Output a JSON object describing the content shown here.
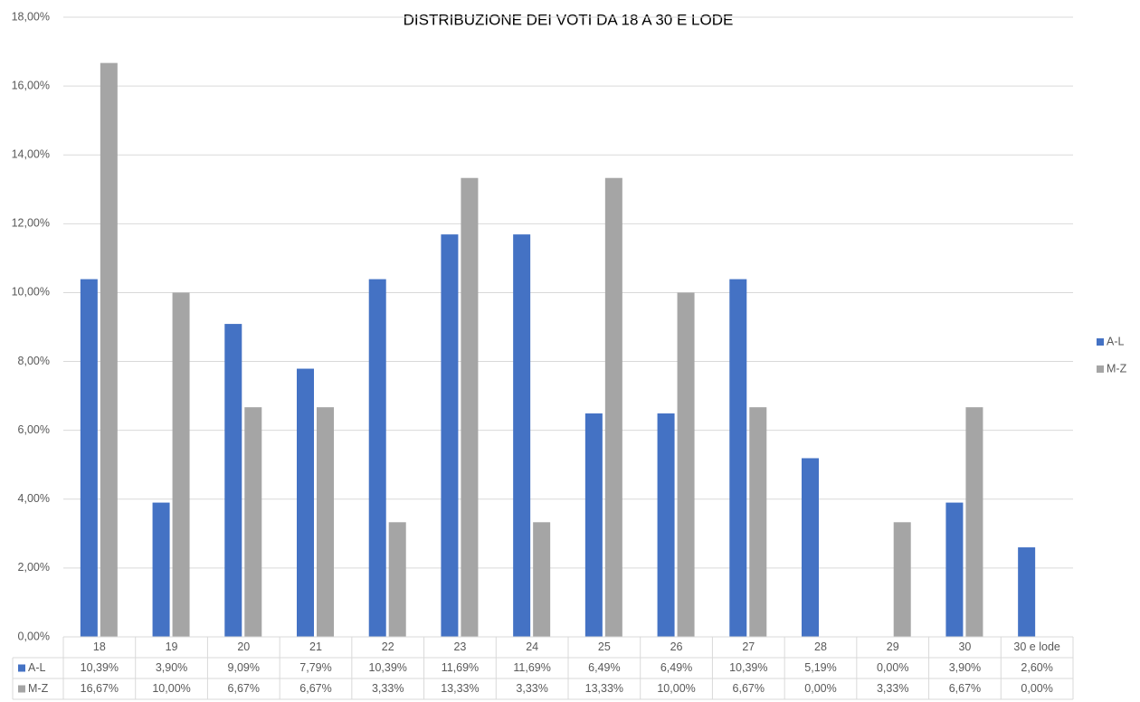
{
  "chart_data": {
    "type": "bar",
    "title": "DISTRIBUZIONE DEI VOTI DA 18 A 30 E LODE",
    "categories": [
      "18",
      "19",
      "20",
      "21",
      "22",
      "23",
      "24",
      "25",
      "26",
      "27",
      "28",
      "29",
      "30",
      "30 e lode"
    ],
    "series": [
      {
        "name": "A-L",
        "color": "#4472c4",
        "values": [
          10.39,
          3.9,
          9.09,
          7.79,
          10.39,
          11.69,
          11.69,
          6.49,
          6.49,
          10.39,
          5.19,
          0.0,
          3.9,
          2.6
        ],
        "value_labels": [
          "10,39%",
          "3,90%",
          "9,09%",
          "7,79%",
          "10,39%",
          "11,69%",
          "11,69%",
          "6,49%",
          "6,49%",
          "10,39%",
          "5,19%",
          "0,00%",
          "3,90%",
          "2,60%"
        ]
      },
      {
        "name": "M-Z",
        "color": "#a5a5a5",
        "values": [
          16.67,
          10.0,
          6.67,
          6.67,
          3.33,
          13.33,
          3.33,
          13.33,
          10.0,
          6.67,
          0.0,
          3.33,
          6.67,
          0.0
        ],
        "value_labels": [
          "16,67%",
          "10,00%",
          "6,67%",
          "6,67%",
          "3,33%",
          "13,33%",
          "3,33%",
          "13,33%",
          "10,00%",
          "6,67%",
          "0,00%",
          "3,33%",
          "6,67%",
          "0,00%"
        ]
      }
    ],
    "ylim": [
      0,
      18
    ],
    "yticks": [
      {
        "value": 0,
        "label": "0,00%"
      },
      {
        "value": 2,
        "label": "2,00%"
      },
      {
        "value": 4,
        "label": "4,00%"
      },
      {
        "value": 6,
        "label": "6,00%"
      },
      {
        "value": 8,
        "label": "8,00%"
      },
      {
        "value": 10,
        "label": "10,00%"
      },
      {
        "value": 12,
        "label": "12,00%"
      },
      {
        "value": 14,
        "label": "14,00%"
      },
      {
        "value": 16,
        "label": "16,00%"
      },
      {
        "value": 18,
        "label": "18,00%"
      }
    ],
    "grid": true,
    "legend": "right",
    "data_table": true
  }
}
